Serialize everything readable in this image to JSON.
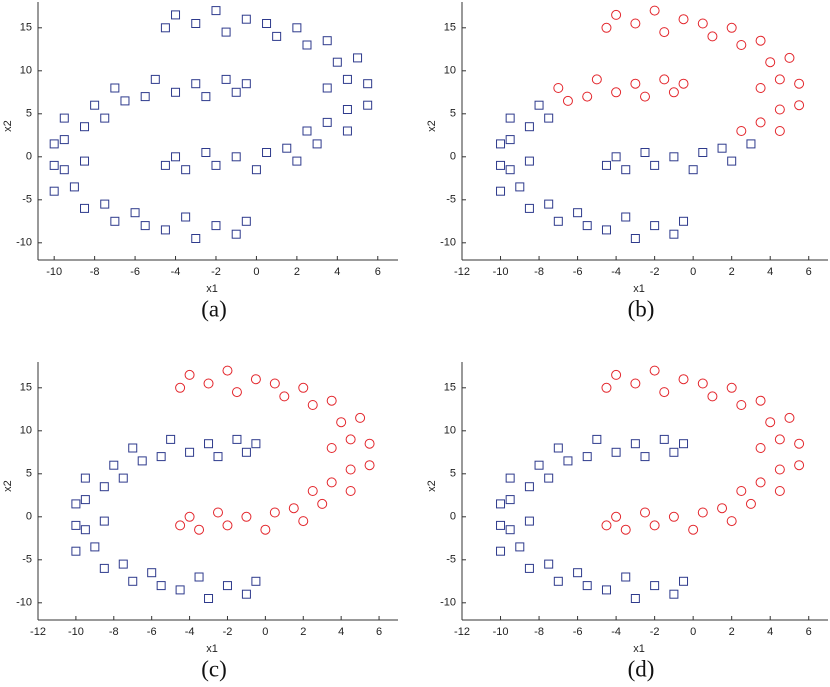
{
  "chart_data": [
    {
      "type": "scatter",
      "title": "(a)",
      "xlabel": "x1",
      "ylabel": "x2",
      "xlim": [
        -10.8,
        7
      ],
      "ylim": [
        -12,
        18
      ],
      "xticks": [
        -10,
        -8,
        -6,
        -4,
        -2,
        0,
        2,
        4,
        6
      ],
      "yticks": [
        -10,
        -5,
        0,
        5,
        10,
        15
      ],
      "series": [
        {
          "color": "#2e3a8c",
          "marker": "square",
          "x": [
            -4.5,
            -4,
            -3,
            -2,
            -1.5,
            -0.5,
            0.5,
            1,
            2,
            2.5,
            3.5,
            4,
            5,
            4.5,
            5.5,
            3.5,
            5.5,
            4.5,
            3.5,
            4.5,
            2.5,
            3,
            1.5,
            2,
            0.5,
            0,
            -1,
            -2,
            -2.5,
            -3.5,
            -4,
            -4.5,
            -0.5,
            -1,
            -2,
            -3,
            -3.5,
            -4.5,
            -5.5,
            -6,
            -7,
            -7.5,
            -8.5,
            -9,
            -10,
            -9.5,
            -10,
            -8.5,
            -10,
            -9.5,
            -8.5,
            -9.5,
            -7.5,
            -8,
            -6.5,
            -7,
            -5.5,
            -5,
            -4,
            -3,
            -2.5,
            -1.5,
            -1,
            -0.5
          ],
          "values": [
            15,
            16.5,
            15.5,
            17,
            14.5,
            16,
            15.5,
            14,
            15,
            13,
            13.5,
            11,
            11.5,
            9,
            8.5,
            8,
            6,
            5.5,
            4,
            3,
            3,
            1.5,
            1,
            -0.5,
            0.5,
            -1.5,
            0,
            -1,
            0.5,
            -1.5,
            0,
            -1,
            -7.5,
            -9,
            -8,
            -9.5,
            -7,
            -8.5,
            -8,
            -6.5,
            -7.5,
            -5.5,
            -6,
            -3.5,
            -4,
            -1.5,
            -1,
            -0.5,
            1.5,
            2,
            3.5,
            4.5,
            4.5,
            6,
            6.5,
            8,
            7,
            9,
            7.5,
            8.5,
            7,
            9,
            7.5,
            8.5
          ]
        }
      ]
    },
    {
      "type": "scatter",
      "title": "(b)",
      "xlabel": "x1",
      "ylabel": "x2",
      "xlim": [
        -12,
        7
      ],
      "ylim": [
        -12,
        18
      ],
      "xticks": [
        -12,
        -10,
        -8,
        -6,
        -4,
        -2,
        0,
        2,
        4,
        6
      ],
      "yticks": [
        -10,
        -5,
        0,
        5,
        10,
        15
      ],
      "series": [
        {
          "color": "#2e3a8c",
          "marker": "square",
          "x": [
            3,
            1.5,
            2,
            0.5,
            0,
            -1,
            -2,
            -2.5,
            -3.5,
            -4,
            -4.5,
            -0.5,
            -1,
            -2,
            -3,
            -3.5,
            -4.5,
            -5.5,
            -6,
            -7,
            -7.5,
            -8.5,
            -9,
            -10,
            -9.5,
            -10,
            -8.5,
            -10,
            -9.5,
            -8.5,
            -9.5,
            -7.5,
            -8
          ],
          "values": [
            1.5,
            1,
            -0.5,
            0.5,
            -1.5,
            0,
            -1,
            0.5,
            -1.5,
            0,
            -1,
            -7.5,
            -9,
            -8,
            -9.5,
            -7,
            -8.5,
            -8,
            -6.5,
            -7.5,
            -5.5,
            -6,
            -3.5,
            -4,
            -1.5,
            -1,
            -0.5,
            1.5,
            2,
            3.5,
            4.5,
            4.5,
            6
          ]
        },
        {
          "color": "#e3262c",
          "marker": "circle",
          "x": [
            -4.5,
            -4,
            -3,
            -2,
            -1.5,
            -0.5,
            0.5,
            1,
            2,
            2.5,
            3.5,
            4,
            5,
            4.5,
            5.5,
            3.5,
            5.5,
            4.5,
            3.5,
            4.5,
            2.5,
            -6.5,
            -7,
            -5.5,
            -5,
            -4,
            -3,
            -2.5,
            -1.5,
            -1,
            -0.5
          ],
          "values": [
            15,
            16.5,
            15.5,
            17,
            14.5,
            16,
            15.5,
            14,
            15,
            13,
            13.5,
            11,
            11.5,
            9,
            8.5,
            8,
            6,
            5.5,
            4,
            3,
            3,
            6.5,
            8,
            7,
            9,
            7.5,
            8.5,
            7,
            9,
            7.5,
            8.5
          ]
        }
      ]
    },
    {
      "type": "scatter",
      "title": "(c)",
      "xlabel": "x1",
      "ylabel": "x2",
      "xlim": [
        -12,
        7
      ],
      "ylim": [
        -12,
        18
      ],
      "xticks": [
        -12,
        -10,
        -8,
        -6,
        -4,
        -2,
        0,
        2,
        4,
        6
      ],
      "yticks": [
        -10,
        -5,
        0,
        5,
        10,
        15
      ],
      "series": [
        {
          "color": "#2e3a8c",
          "marker": "square",
          "x": [
            -0.5,
            -1,
            -2,
            -3,
            -3.5,
            -4.5,
            -5.5,
            -6,
            -7,
            -7.5,
            -8.5,
            -9,
            -10,
            -9.5,
            -10,
            -8.5,
            -10,
            -9.5,
            -8.5,
            -9.5,
            -7.5,
            -8,
            -6.5,
            -7,
            -5.5,
            -5,
            -4,
            -3,
            -2.5,
            -1.5,
            -1,
            -0.5
          ],
          "values": [
            -7.5,
            -9,
            -8,
            -9.5,
            -7,
            -8.5,
            -8,
            -6.5,
            -7.5,
            -5.5,
            -6,
            -3.5,
            -4,
            -1.5,
            -1,
            -0.5,
            1.5,
            2,
            3.5,
            4.5,
            4.5,
            6,
            6.5,
            8,
            7,
            9,
            7.5,
            8.5,
            7,
            9,
            7.5,
            8.5
          ]
        },
        {
          "color": "#e3262c",
          "marker": "circle",
          "x": [
            -4.5,
            -4,
            -3,
            -2,
            -1.5,
            -0.5,
            0.5,
            1,
            2,
            2.5,
            3.5,
            4,
            5,
            4.5,
            5.5,
            3.5,
            5.5,
            4.5,
            3.5,
            4.5,
            2.5,
            3,
            1.5,
            2,
            0.5,
            0,
            -1,
            -2,
            -2.5,
            -3.5,
            -4,
            -4.5
          ],
          "values": [
            15,
            16.5,
            15.5,
            17,
            14.5,
            16,
            15.5,
            14,
            15,
            13,
            13.5,
            11,
            11.5,
            9,
            8.5,
            8,
            6,
            5.5,
            4,
            3,
            3,
            1.5,
            1,
            -0.5,
            0.5,
            -1.5,
            0,
            -1,
            0.5,
            -1.5,
            0,
            -1
          ]
        }
      ]
    },
    {
      "type": "scatter",
      "title": "(d)",
      "xlabel": "x1",
      "ylabel": "x2",
      "xlim": [
        -12,
        7
      ],
      "ylim": [
        -12,
        18
      ],
      "xticks": [
        -12,
        -10,
        -8,
        -6,
        -4,
        -2,
        0,
        2,
        4,
        6
      ],
      "yticks": [
        -10,
        -5,
        0,
        5,
        10,
        15
      ],
      "series": [
        {
          "color": "#2e3a8c",
          "marker": "square",
          "x": [
            -0.5,
            -1,
            -2,
            -3,
            -3.5,
            -4.5,
            -5.5,
            -6,
            -7,
            -7.5,
            -8.5,
            -9,
            -10,
            -9.5,
            -10,
            -8.5,
            -10,
            -9.5,
            -8.5,
            -9.5,
            -7.5,
            -8,
            -6.5,
            -7,
            -5.5,
            -5,
            -4,
            -3,
            -2.5,
            -1.5,
            -1,
            -0.5
          ],
          "values": [
            -7.5,
            -9,
            -8,
            -9.5,
            -7,
            -8.5,
            -8,
            -6.5,
            -7.5,
            -5.5,
            -6,
            -3.5,
            -4,
            -1.5,
            -1,
            -0.5,
            1.5,
            2,
            3.5,
            4.5,
            4.5,
            6,
            6.5,
            8,
            7,
            9,
            7.5,
            8.5,
            7,
            9,
            7.5,
            8.5
          ]
        },
        {
          "color": "#e3262c",
          "marker": "circle",
          "x": [
            -4.5,
            -4,
            -3,
            -2,
            -1.5,
            -0.5,
            0.5,
            1,
            2,
            2.5,
            3.5,
            4,
            5,
            4.5,
            5.5,
            3.5,
            5.5,
            4.5,
            3.5,
            4.5,
            2.5,
            3,
            1.5,
            2,
            0.5,
            0,
            -1,
            -2,
            -2.5,
            -3.5,
            -4,
            -4.5
          ],
          "values": [
            15,
            16.5,
            15.5,
            17,
            14.5,
            16,
            15.5,
            14,
            15,
            13,
            13.5,
            11,
            11.5,
            9,
            8.5,
            8,
            6,
            5.5,
            4,
            3,
            3,
            1.5,
            1,
            -0.5,
            0.5,
            -1.5,
            0,
            -1,
            0.5,
            -1.5,
            0,
            -1
          ]
        }
      ]
    }
  ]
}
